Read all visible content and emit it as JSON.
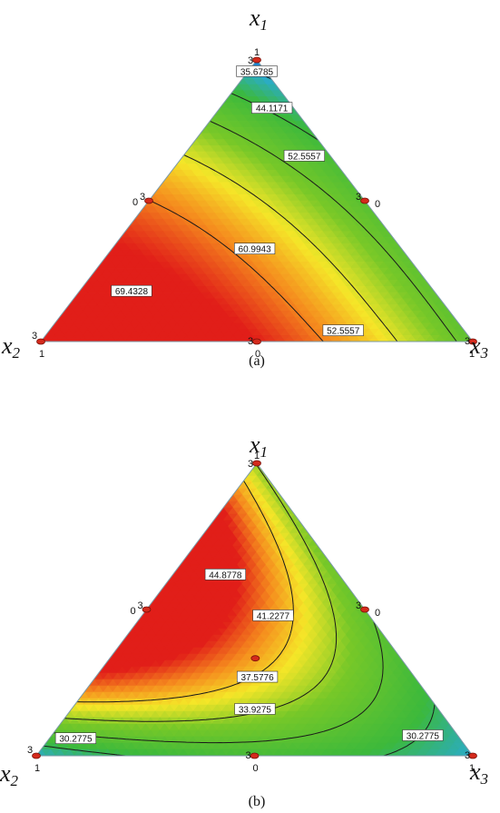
{
  "chart_data": [
    {
      "type": "heatmap",
      "subtype": "ternary-contour",
      "caption": "(a)",
      "vertex_labels": {
        "top": "x1",
        "left": "x2",
        "right": "x3"
      },
      "vertex_ticks": {
        "top": [
          "3",
          "1"
        ],
        "left": [
          "3",
          "1"
        ],
        "right": [
          "3",
          "1"
        ]
      },
      "edge_ticks": {
        "left": [
          "0",
          "3"
        ],
        "right": [
          "3",
          "0"
        ],
        "bottom": [
          "3",
          "0"
        ]
      },
      "design_points": [
        [
          1,
          0,
          0
        ],
        [
          0,
          1,
          0
        ],
        [
          0,
          0,
          1
        ],
        [
          0.5,
          0.5,
          0
        ],
        [
          0.5,
          0,
          0.5
        ],
        [
          0,
          0.5,
          0.5
        ],
        [
          0.3333,
          0.3333,
          0.3333
        ]
      ],
      "contour_levels": [
        35.6785,
        44.1171,
        52.5557,
        60.9943,
        69.4328
      ],
      "contour_labels": [
        {
          "text": "35.6785",
          "bary": [
            0.96,
            0.02,
            0.02
          ]
        },
        {
          "text": "44.1171",
          "bary": [
            0.83,
            0.05,
            0.12
          ]
        },
        {
          "text": "52.5557",
          "bary": [
            0.66,
            0.06,
            0.28
          ]
        },
        {
          "text": "60.9943",
          "bary": [
            0.33,
            0.34,
            0.33
          ]
        },
        {
          "text": "69.4328",
          "bary": [
            0.18,
            0.7,
            0.12
          ]
        },
        {
          "text": "52.5557",
          "bary": [
            0.04,
            0.28,
            0.68
          ]
        }
      ],
      "color_scale": {
        "low": "#0a74c8",
        "mid": "#2fb53a",
        "high": "#e8201c",
        "range": [
          30,
          75
        ]
      }
    },
    {
      "type": "heatmap",
      "subtype": "ternary-contour",
      "caption": "(b)",
      "vertex_labels": {
        "top": "x1",
        "left": "x2",
        "right": "x3"
      },
      "vertex_ticks": {
        "top": [
          "3",
          "1"
        ],
        "left": [
          "3",
          "1"
        ],
        "right": [
          "3",
          "1"
        ]
      },
      "edge_ticks": {
        "left": [
          "0",
          "3"
        ],
        "right": [
          "3",
          "0"
        ],
        "bottom": [
          "3",
          "0"
        ]
      },
      "design_points": [
        [
          1,
          0,
          0
        ],
        [
          0,
          1,
          0
        ],
        [
          0,
          0,
          1
        ],
        [
          0.5,
          0.5,
          0
        ],
        [
          0.5,
          0,
          0.5
        ],
        [
          0,
          0.5,
          0.5
        ],
        [
          0.3333,
          0.3333,
          0.3333
        ]
      ],
      "contour_levels": [
        30.2775,
        33.9275,
        37.5776,
        41.2277,
        44.8778
      ],
      "contour_labels": [
        {
          "text": "44.8778",
          "bary": [
            0.62,
            0.26,
            0.12
          ]
        },
        {
          "text": "41.2277",
          "bary": [
            0.48,
            0.22,
            0.3
          ]
        },
        {
          "text": "37.5776",
          "bary": [
            0.27,
            0.36,
            0.37
          ]
        },
        {
          "text": "33.9275",
          "bary": [
            0.16,
            0.42,
            0.42
          ]
        },
        {
          "text": "30.2775",
          "bary": [
            0.06,
            0.88,
            0.06
          ]
        },
        {
          "text": "30.2775",
          "bary": [
            0.07,
            0.08,
            0.85
          ]
        }
      ],
      "color_scale": {
        "low": "#0a5fbf",
        "mid": "#2fb53a",
        "high": "#e8301c",
        "range": [
          28,
          50
        ]
      }
    }
  ]
}
